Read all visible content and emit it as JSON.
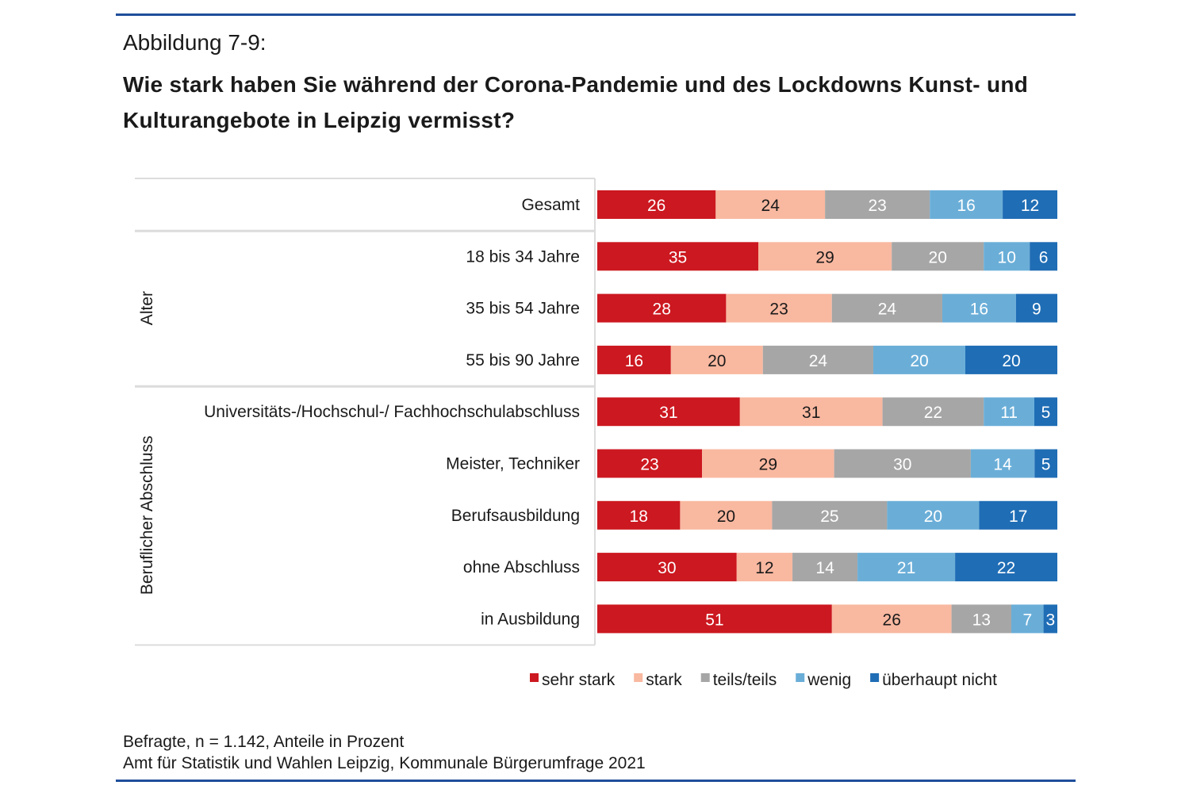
{
  "figure_label": "Abbildung 7-9:",
  "title": "Wie stark haben Sie während der Corona-Pandemie und des Lockdowns Kunst- und Kulturangebote in Leipzig vermisst?",
  "footnotes": [
    "Befragte, n = 1.142, Anteile in Prozent",
    "Amt für Statistik und Wahlen Leipzig, Kommunale Bürgerumfrage 2021"
  ],
  "chart_data": {
    "type": "bar",
    "orientation": "horizontal",
    "stacked": true,
    "title": "Wie stark haben Sie während der Corona-Pandemie und des Lockdowns Kunst- und Kulturangebote in Leipzig vermisst?",
    "xlabel": "",
    "ylabel": "",
    "xlim": [
      0,
      100
    ],
    "grid": false,
    "legend_position": "bottom-right",
    "unit": "Prozent",
    "groups": [
      {
        "name": "",
        "categories": [
          "Gesamt"
        ]
      },
      {
        "name": "Alter",
        "categories": [
          "18 bis 34 Jahre",
          "35 bis 54 Jahre",
          "55 bis 90 Jahre"
        ]
      },
      {
        "name": "Beruflicher Abschluss",
        "categories": [
          "Universitäts-/Hochschul-/ Fachhochschulabschluss",
          "Meister, Techniker",
          "Berufsausbildung",
          "ohne Abschluss",
          "in Ausbildung"
        ]
      }
    ],
    "categories": [
      "Gesamt",
      "18 bis 34 Jahre",
      "35 bis 54 Jahre",
      "55 bis 90 Jahre",
      "Universitäts-/Hochschul-/ Fachhochschulabschluss",
      "Meister, Techniker",
      "Berufsausbildung",
      "ohne Abschluss",
      "in Ausbildung"
    ],
    "series": [
      {
        "name": "sehr stark",
        "color": "#cc1820",
        "label_color": "#ffffff",
        "values": [
          26,
          35,
          28,
          16,
          31,
          23,
          18,
          30,
          51
        ]
      },
      {
        "name": "stark",
        "color": "#f9b8a0",
        "label_color": "#1a1a1a",
        "values": [
          24,
          29,
          23,
          20,
          31,
          29,
          20,
          12,
          26
        ]
      },
      {
        "name": "teils/teils",
        "color": "#a6a6a6",
        "label_color": "#ffffff",
        "values": [
          23,
          20,
          24,
          24,
          22,
          30,
          25,
          14,
          13
        ]
      },
      {
        "name": "wenig",
        "color": "#6aaed8",
        "label_color": "#ffffff",
        "values": [
          16,
          10,
          16,
          20,
          11,
          14,
          20,
          21,
          7
        ]
      },
      {
        "name": "überhaupt nicht",
        "color": "#1f6db5",
        "label_color": "#ffffff",
        "values": [
          12,
          6,
          9,
          20,
          5,
          5,
          17,
          22,
          3
        ]
      }
    ]
  }
}
